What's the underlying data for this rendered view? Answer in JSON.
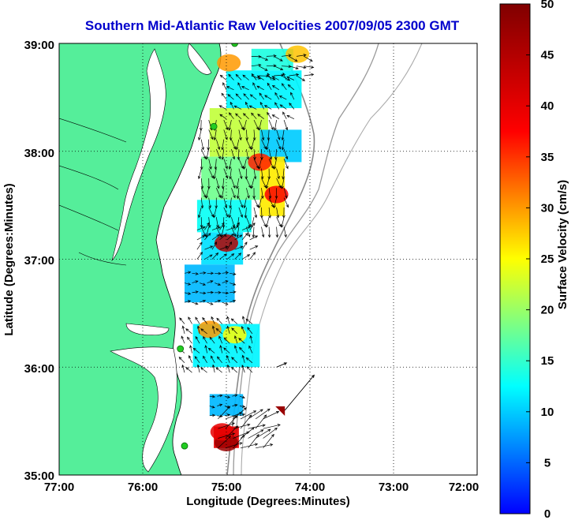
{
  "chart_data": {
    "type": "heatmap",
    "title": "Southern Mid-Atlantic Raw Velocities 2007/09/05 2300 GMT",
    "xlabel": "Longitude (Degrees:Minutes)",
    "ylabel": "Latitude (Degrees:Minutes)",
    "colorbar_label": "Surface Velocity (cm/s)",
    "x_ticks": [
      "77:00",
      "76:00",
      "75:00",
      "74:00",
      "73:00",
      "72:00"
    ],
    "x_tick_values": [
      -77,
      -76,
      -75,
      -74,
      -73,
      -72
    ],
    "y_ticks": [
      "39:00",
      "38:00",
      "37:00",
      "36:00",
      "35:00"
    ],
    "y_tick_values": [
      39,
      38,
      37,
      36,
      35
    ],
    "xlim": [
      -77,
      -72
    ],
    "ylim": [
      35,
      39
    ],
    "colorbar_ticks": [
      0,
      5,
      10,
      15,
      20,
      25,
      30,
      35,
      40,
      45,
      50
    ],
    "colorbar_range": [
      0,
      50
    ],
    "grid": "dotted",
    "colormap": "jet",
    "land_color": "#55ee9a",
    "vector_color": "#000000",
    "station_color": "#22cc22",
    "stations": [
      {
        "lon": -74.9,
        "lat": 39.0
      },
      {
        "lon": -75.15,
        "lat": 38.23
      },
      {
        "lon": -75.55,
        "lat": 36.17
      },
      {
        "lon": -75.5,
        "lat": 35.27
      }
    ],
    "velocity_patches": [
      {
        "lon_min": -74.7,
        "lon_max": -74.2,
        "lat_min": 38.75,
        "lat_max": 38.95,
        "speed": 14
      },
      {
        "lon_min": -75.0,
        "lon_max": -74.1,
        "lat_min": 38.4,
        "lat_max": 38.75,
        "speed": 12
      },
      {
        "lon_min": -75.2,
        "lon_max": -74.5,
        "lat_min": 37.95,
        "lat_max": 38.4,
        "speed": 22
      },
      {
        "lon_min": -74.6,
        "lon_max": -74.1,
        "lat_min": 37.9,
        "lat_max": 38.2,
        "speed": 10
      },
      {
        "lon_min": -75.3,
        "lon_max": -74.6,
        "lat_min": 37.55,
        "lat_max": 37.95,
        "speed": 18
      },
      {
        "lon_min": -74.6,
        "lon_max": -74.3,
        "lat_min": 37.4,
        "lat_max": 37.95,
        "speed": 26
      },
      {
        "lon_min": -75.35,
        "lon_max": -74.7,
        "lat_min": 37.25,
        "lat_max": 37.55,
        "speed": 13
      },
      {
        "lon_min": -75.3,
        "lon_max": -74.8,
        "lat_min": 36.95,
        "lat_max": 37.25,
        "speed": 11
      },
      {
        "lon_min": -75.5,
        "lon_max": -74.9,
        "lat_min": 36.6,
        "lat_max": 36.95,
        "speed": 9
      },
      {
        "lon_min": -75.4,
        "lon_max": -74.6,
        "lat_min": 36.0,
        "lat_max": 36.4,
        "speed": 12
      },
      {
        "lon_min": -75.2,
        "lon_max": -74.8,
        "lat_min": 35.55,
        "lat_max": 35.75,
        "speed": 9
      },
      {
        "lon_min": -75.15,
        "lon_max": -74.85,
        "lat_min": 35.25,
        "lat_max": 35.45,
        "speed": 40
      }
    ],
    "velocity_hotspots": [
      {
        "lon": -74.97,
        "lat": 38.82,
        "speed": 30
      },
      {
        "lon": -74.15,
        "lat": 38.9,
        "speed": 28
      },
      {
        "lon": -74.6,
        "lat": 37.9,
        "speed": 36
      },
      {
        "lon": -74.4,
        "lat": 37.6,
        "speed": 38
      },
      {
        "lon": -75.0,
        "lat": 37.15,
        "speed": 45
      },
      {
        "lon": -75.2,
        "lat": 36.35,
        "speed": 30
      },
      {
        "lon": -74.9,
        "lat": 36.3,
        "speed": 25
      },
      {
        "lon": -75.0,
        "lat": 35.3,
        "speed": 47
      },
      {
        "lon": -75.05,
        "lat": 35.4,
        "speed": 40
      }
    ],
    "flow_regions": [
      {
        "lon_min": -74.7,
        "lon_max": -74.05,
        "lat_min": 38.7,
        "lat_max": 38.95,
        "u": 1,
        "v": -0.2,
        "mag": 22
      },
      {
        "lon_min": -75.0,
        "lon_max": -74.1,
        "lat_min": 38.3,
        "lat_max": 38.7,
        "u": -0.6,
        "v": 0.6,
        "mag": 18
      },
      {
        "lon_min": -75.3,
        "lon_max": -74.3,
        "lat_min": 37.3,
        "lat_max": 38.3,
        "u": 0.1,
        "v": -1,
        "mag": 24
      },
      {
        "lon_min": -75.35,
        "lon_max": -74.7,
        "lat_min": 37.0,
        "lat_max": 37.3,
        "u": 0.6,
        "v": 0.5,
        "mag": 20
      },
      {
        "lon_min": -75.5,
        "lon_max": -74.9,
        "lat_min": 36.6,
        "lat_max": 36.95,
        "u": 1,
        "v": 0,
        "mag": 14
      },
      {
        "lon_min": -75.5,
        "lon_max": -74.6,
        "lat_min": 35.95,
        "lat_max": 36.45,
        "u": -0.5,
        "v": 0.8,
        "mag": 18
      },
      {
        "lon_min": -75.2,
        "lon_max": -74.8,
        "lat_min": 35.55,
        "lat_max": 35.75,
        "u": 1,
        "v": 0,
        "mag": 12
      },
      {
        "lon_min": -75.1,
        "lon_max": -74.5,
        "lat_min": 35.25,
        "lat_max": 35.55,
        "u": 0.8,
        "v": 0.5,
        "mag": 40
      }
    ],
    "outlier_vectors": [
      {
        "lon": -74.3,
        "lat": 35.6,
        "u": 0.35,
        "v": 0.42
      },
      {
        "lon": -74.4,
        "lat": 36.0,
        "u": 0.12,
        "v": 0.05
      }
    ],
    "warning_marker": {
      "lon": -74.3,
      "lat": 35.6,
      "color": "#9a0000"
    }
  }
}
